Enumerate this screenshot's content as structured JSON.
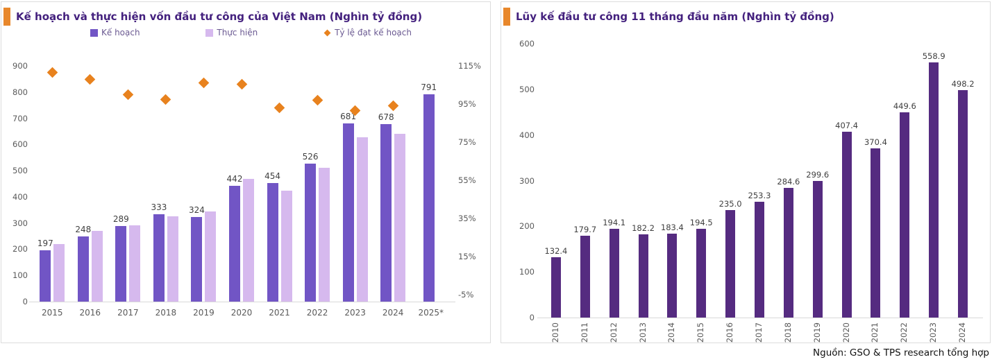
{
  "source_note": "Nguồn: GSO & TPS research tổng hợp",
  "colors": {
    "accent_orange": "#E8872B",
    "title_purple": "#44217E",
    "plan_bar": "#7155C5",
    "actual_bar": "#D6B9EE",
    "diamond_orange": "#E8821E",
    "right_bar": "#552B80",
    "axis_gray": "#595959",
    "label_dark": "#404040",
    "border_gray": "#DCDCDC",
    "legend_text": "#6B5A92"
  },
  "chart_data": [
    {
      "type": "bar",
      "subtype": "grouped-bars-with-percent-scatter",
      "title": "Kế hoạch và thực hiện vốn đầu tư công của Việt Nam (Nghìn tỷ đồng)",
      "categories": [
        "2015",
        "2016",
        "2017",
        "2018",
        "2019",
        "2020",
        "2021",
        "2022",
        "2023",
        "2024",
        "2025*"
      ],
      "series": [
        {
          "name": "Kế hoạch",
          "type": "bar",
          "values": [
            197,
            248,
            289,
            333,
            324,
            442,
            454,
            526,
            681,
            678,
            791
          ],
          "labels": [
            "197",
            "248",
            "289",
            "333",
            "324",
            "442",
            "454",
            "526",
            "681",
            "678",
            "791"
          ]
        },
        {
          "name": "Thực hiện",
          "type": "bar",
          "values": [
            220,
            269,
            291,
            327,
            344,
            468,
            424,
            512,
            627,
            641,
            null
          ]
        },
        {
          "name": "Tỷ lệ đạt kế hoạch",
          "type": "scatter",
          "marker": "diamond",
          "axis": "right",
          "values_pct": [
            111.5,
            108,
            100,
            97.5,
            106,
            105.5,
            93,
            97,
            91.5,
            94,
            null
          ]
        }
      ],
      "left_axis": {
        "ticks": [
          0,
          100,
          200,
          300,
          400,
          500,
          600,
          700,
          800,
          900
        ],
        "render_max": 980
      },
      "right_axis": {
        "ticks_pct": [
          -5,
          15,
          35,
          55,
          75,
          95,
          115
        ],
        "min_pct": -5,
        "max_pct": 115
      },
      "grid": false,
      "legend_position": "top"
    },
    {
      "type": "bar",
      "title": "Lũy kế đầu tư công 11 tháng đầu năm (Nghìn tỷ đồng)",
      "categories": [
        "2010",
        "2011",
        "2012",
        "2013",
        "2014",
        "2015",
        "2016",
        "2017",
        "2018",
        "2019",
        "2020",
        "2021",
        "2022",
        "2023",
        "2024"
      ],
      "values": [
        132.4,
        179.7,
        194.1,
        182.2,
        183.4,
        194.5,
        235.0,
        253.3,
        284.6,
        299.6,
        407.4,
        370.4,
        449.6,
        558.9,
        498.2
      ],
      "labels": [
        "132.4",
        "179.7",
        "194.1",
        "182.2",
        "183.4",
        "194.5",
        "235.0",
        "253.3",
        "284.6",
        "299.6",
        "407.4",
        "370.4",
        "449.6",
        "558.9",
        "498.2"
      ],
      "y_axis": {
        "ticks": [
          0,
          100,
          200,
          300,
          400,
          500,
          600
        ],
        "render_max": 605
      },
      "grid": false
    }
  ]
}
